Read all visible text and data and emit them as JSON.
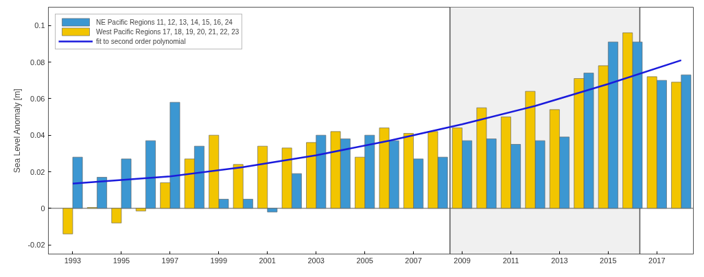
{
  "chart_data": {
    "type": "bar",
    "ylabel": "Sea Level Anomaly [m]",
    "x": [
      1993,
      1994,
      1995,
      1996,
      1997,
      1998,
      1999,
      2000,
      2001,
      2002,
      2003,
      2004,
      2005,
      2006,
      2007,
      2008,
      2009,
      2010,
      2011,
      2012,
      2013,
      2014,
      2015,
      2016,
      2017,
      2018
    ],
    "series": [
      {
        "name": "NE Pacific Regions 11, 12, 13, 14, 15, 16, 24",
        "color": "#3c97d2",
        "values": [
          0.028,
          0.017,
          0.027,
          0.037,
          0.058,
          0.034,
          0.005,
          0.005,
          -0.002,
          0.019,
          0.04,
          0.038,
          0.04,
          0.037,
          0.027,
          0.028,
          0.037,
          0.038,
          0.035,
          0.037,
          0.039,
          0.074,
          0.091,
          0.091,
          0.07,
          0.073
        ]
      },
      {
        "name": "West Pacific Regions 17, 18, 19, 20, 21, 22, 23",
        "color": "#f2c500",
        "values": [
          -0.014,
          0.0005,
          -0.008,
          -0.0015,
          0.014,
          0.027,
          0.04,
          0.024,
          0.034,
          0.033,
          0.036,
          0.042,
          0.028,
          0.044,
          0.041,
          0.042,
          0.044,
          0.055,
          0.05,
          0.064,
          0.054,
          0.071,
          0.078,
          0.096,
          0.072,
          0.069
        ]
      },
      {
        "name": "fit to second order polynomial",
        "type": "line",
        "color": "#1a1adc",
        "x": [
          1993,
          1997,
          2000,
          2003,
          2006,
          2009,
          2012,
          2015,
          2018
        ],
        "values": [
          0.0135,
          0.0175,
          0.0225,
          0.029,
          0.037,
          0.046,
          0.056,
          0.068,
          0.081
        ]
      }
    ],
    "xlim": [
      1992,
      2018.5
    ],
    "xticks": [
      1993,
      1995,
      1997,
      1999,
      2001,
      2003,
      2005,
      2007,
      2009,
      2011,
      2013,
      2015,
      2017
    ],
    "ylim": [
      -0.025,
      0.11
    ],
    "yticks": [
      -0.02,
      0,
      0.02,
      0.04,
      0.06,
      0.08,
      0.1
    ],
    "bands": [
      {
        "axis": "x",
        "from": 2008.5,
        "to": 2016.3,
        "color": "#f0f0f0"
      }
    ],
    "ref_lines": [
      {
        "axis": "x",
        "value": 2008.5,
        "color": "#555555"
      },
      {
        "axis": "x",
        "value": 2016.3,
        "color": "#555555"
      },
      {
        "axis": "y",
        "value": 0,
        "color": "#555555"
      }
    ],
    "grid": false,
    "legend": "top left",
    "line_style": "solid"
  }
}
